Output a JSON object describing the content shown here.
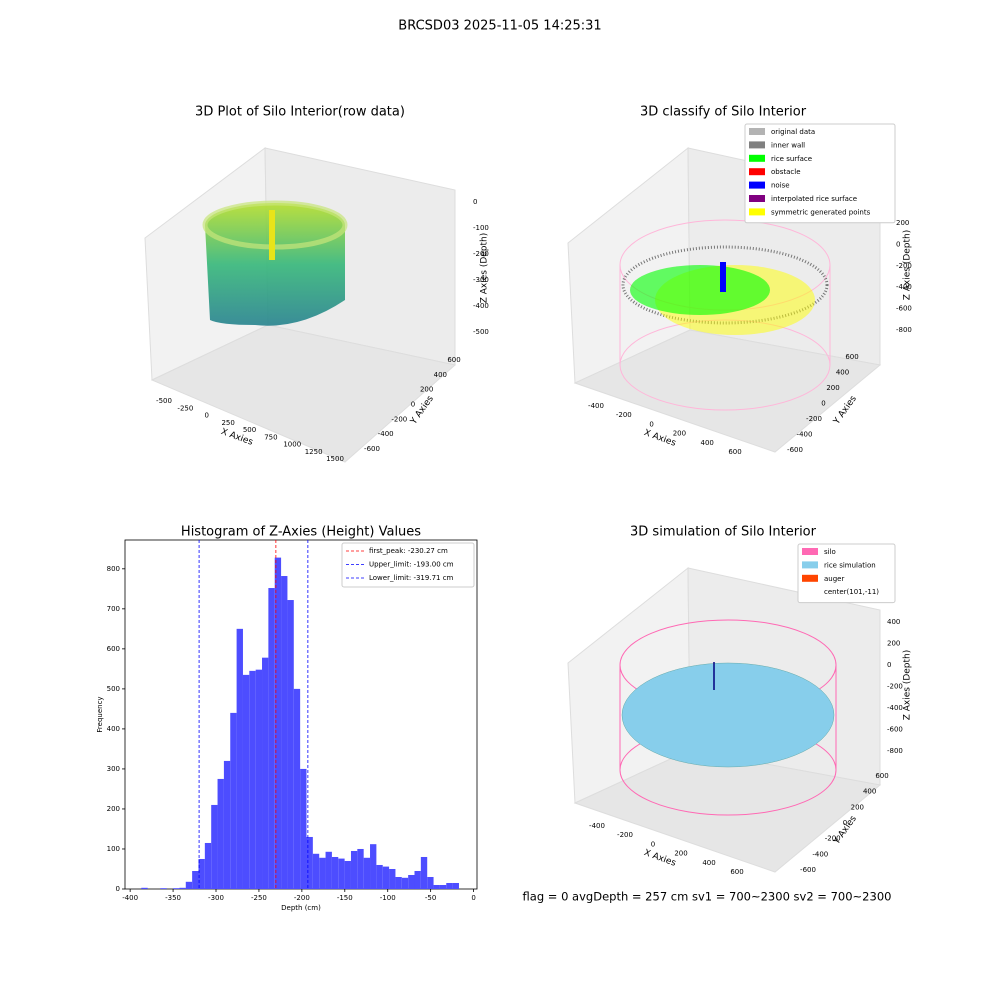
{
  "suptitle": "BRCSD03 2025-11-05 14:25:31",
  "footer": "flag = 0     avgDepth = 257 cm  sv1 = 700~2300  sv2 = 700~2300",
  "chart_data": [
    {
      "type": "scatter3d",
      "title": "3D Plot of Silo Interior(row data)",
      "xlabel": "X Axies",
      "ylabel": "Y Axies",
      "zlabel": "Z Axies (Depth)",
      "xticks": [
        -500,
        -250,
        0,
        250,
        500,
        750,
        1000,
        1250,
        1500
      ],
      "yticks": [
        -600,
        -400,
        -200,
        0,
        200,
        400,
        600
      ],
      "zticks": [
        -500,
        -400,
        -300,
        -200,
        -100,
        0
      ]
    },
    {
      "type": "scatter3d",
      "title": "3D classify of Silo Interior",
      "xlabel": "X Axies",
      "ylabel": "Y Axies",
      "zlabel": "Z Axies (Depth)",
      "xticks": [
        -400,
        -200,
        0,
        200,
        400,
        600
      ],
      "yticks": [
        -600,
        -400,
        -200,
        0,
        200,
        400,
        600
      ],
      "zticks": [
        -800,
        -600,
        -400,
        -200,
        0,
        200
      ],
      "legend": "upper right",
      "series": [
        {
          "name": "original data",
          "color": "#b3b3b3"
        },
        {
          "name": "inner wall",
          "color": "#808080"
        },
        {
          "name": "rice surface",
          "color": "#00ff00"
        },
        {
          "name": "obstacle",
          "color": "#ff0000"
        },
        {
          "name": "noise",
          "color": "#0000ff"
        },
        {
          "name": "interpolated rice surface",
          "color": "#800080"
        },
        {
          "name": "symmetric generated points",
          "color": "#ffff00"
        }
      ]
    },
    {
      "type": "histogram",
      "title": "Histogram of Z-Axies (Height) Values",
      "xlabel": "Depth (cm)",
      "ylabel": "Frequency",
      "color": "#4d4dff",
      "bins": [
        -387,
        -379.6,
        -372.2,
        -364.8,
        -357.4,
        -350,
        -342.6,
        -335.2,
        -327.8,
        -320.4,
        -313,
        -305.6,
        -298.2,
        -290.8,
        -283.4,
        -276,
        -268.6,
        -261.2,
        -253.8,
        -246.4,
        -239,
        -231.6,
        -224.2,
        -216.8,
        -209.4,
        -202,
        -194.6,
        -187.2,
        -179.8,
        -172.4,
        -165,
        -157.6,
        -150.2,
        -142.8,
        -135.4,
        -128,
        -120.6,
        -113.2,
        -105.8,
        -98.4,
        -91,
        -83.6,
        -76.2,
        -68.8,
        -61.4,
        -54,
        -46.6,
        -39.2,
        -31.8,
        -24.4,
        -17
      ],
      "counts": [
        3,
        0,
        0,
        2,
        0,
        2,
        3,
        18,
        45,
        75,
        115,
        210,
        275,
        320,
        440,
        650,
        535,
        545,
        548,
        578,
        752,
        828,
        782,
        722,
        500,
        300,
        130,
        88,
        78,
        93,
        80,
        76,
        70,
        95,
        100,
        78,
        112,
        60,
        56,
        50,
        30,
        28,
        35,
        45,
        80,
        30,
        10,
        10,
        15,
        15
      ],
      "xlim": [
        -406,
        4
      ],
      "ylim": [
        0,
        872
      ],
      "xticks": [
        -400,
        -350,
        -300,
        -250,
        -200,
        -150,
        -100,
        -50,
        0
      ],
      "yticks": [
        0,
        100,
        200,
        300,
        400,
        500,
        600,
        700,
        800
      ],
      "legend": "upper right",
      "vlines": [
        {
          "name": "first_peak: -230.27 cm",
          "value": -230.27,
          "color": "#ff0000"
        },
        {
          "name": "Upper_limit: -193.00 cm",
          "value": -193.0,
          "color": "#0000ff"
        },
        {
          "name": "Lower_limit: -319.71 cm",
          "value": -319.71,
          "color": "#0000ff"
        }
      ]
    },
    {
      "type": "surface3d",
      "title": "3D simulation of Silo Interior",
      "xlabel": "X Axies",
      "ylabel": "Y Axies",
      "zlabel": "Z Axies (Depth)",
      "xticks": [
        -400,
        -200,
        0,
        200,
        400,
        600
      ],
      "yticks": [
        -600,
        -400,
        -200,
        0,
        200,
        400,
        600
      ],
      "zticks": [
        -800,
        -600,
        -400,
        -200,
        0,
        200,
        400
      ],
      "legend": "upper right",
      "series": [
        {
          "name": "silo",
          "color": "#ff69b4"
        },
        {
          "name": "rice simulation",
          "color": "#87ceeb"
        },
        {
          "name": "auger",
          "color": "#ff4500"
        },
        {
          "name": "center(101,-11)",
          "color": "none"
        }
      ]
    }
  ]
}
